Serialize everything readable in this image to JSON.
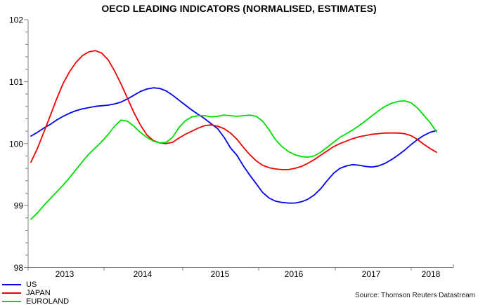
{
  "title": "OECD LEADING INDICATORS (NORMALISED, ESTIMATES)",
  "source": "Source: Thomson Reuters Datastream",
  "legend": [
    {
      "label": "US",
      "color": "#0000ee"
    },
    {
      "label": "JAPAN",
      "color": "#ee0000"
    },
    {
      "label": "EUROLAND",
      "color": "#00dd00"
    }
  ],
  "chart_data": {
    "type": "line",
    "title": "OECD LEADING INDICATORS (NORMALISED, ESTIMATES)",
    "xlabel": "",
    "ylabel": "",
    "ylim": [
      98,
      102
    ],
    "y_ticks": [
      98,
      99,
      100,
      101,
      102
    ],
    "y_minor_step": 0.2,
    "x_tick_years": [
      "2013",
      "2014",
      "2015",
      "2016",
      "2017",
      "2018"
    ],
    "x_start": "2013-01",
    "x_end": "2018-04",
    "frequency": "monthly",
    "grid": false,
    "legend_position": "bottom-left",
    "series": [
      {
        "name": "US",
        "color": "#0000ee",
        "values": [
          100.12,
          100.18,
          100.25,
          100.31,
          100.38,
          100.44,
          100.49,
          100.53,
          100.56,
          100.58,
          100.6,
          100.61,
          100.62,
          100.64,
          100.67,
          100.72,
          100.78,
          100.84,
          100.88,
          100.9,
          100.89,
          100.85,
          100.78,
          100.7,
          100.62,
          100.54,
          100.47,
          100.4,
          100.32,
          100.24,
          100.1,
          99.93,
          99.81,
          99.64,
          99.49,
          99.35,
          99.21,
          99.12,
          99.07,
          99.05,
          99.04,
          99.04,
          99.06,
          99.1,
          99.17,
          99.27,
          99.4,
          99.52,
          99.6,
          99.64,
          99.66,
          99.65,
          99.63,
          99.62,
          99.64,
          99.68,
          99.74,
          99.81,
          99.89,
          99.98,
          100.06,
          100.13,
          100.18,
          100.21
        ]
      },
      {
        "name": "JAPAN",
        "color": "#ee0000",
        "values": [
          99.7,
          99.92,
          100.18,
          100.45,
          100.72,
          100.97,
          101.16,
          101.31,
          101.42,
          101.48,
          101.5,
          101.46,
          101.35,
          101.17,
          100.96,
          100.73,
          100.5,
          100.3,
          100.14,
          100.05,
          100.01,
          100.0,
          100.02,
          100.09,
          100.15,
          100.2,
          100.25,
          100.29,
          100.3,
          100.28,
          100.24,
          100.17,
          100.07,
          99.94,
          99.82,
          99.72,
          99.65,
          99.61,
          99.59,
          99.58,
          99.58,
          99.6,
          99.63,
          99.68,
          99.74,
          99.81,
          99.88,
          99.95,
          100.0,
          100.04,
          100.08,
          100.11,
          100.13,
          100.15,
          100.16,
          100.17,
          100.17,
          100.17,
          100.16,
          100.13,
          100.07,
          99.99,
          99.92,
          99.86
        ]
      },
      {
        "name": "EUROLAND",
        "color": "#00dd00",
        "values": [
          98.78,
          98.88,
          99.0,
          99.11,
          99.22,
          99.33,
          99.45,
          99.58,
          99.71,
          99.83,
          99.93,
          100.03,
          100.15,
          100.28,
          100.38,
          100.36,
          100.28,
          100.18,
          100.1,
          100.04,
          100.01,
          100.02,
          100.1,
          100.26,
          100.37,
          100.43,
          100.45,
          100.45,
          100.43,
          100.44,
          100.46,
          100.45,
          100.44,
          100.45,
          100.46,
          100.44,
          100.36,
          100.22,
          100.06,
          99.95,
          99.87,
          99.82,
          99.79,
          99.78,
          99.8,
          99.86,
          99.94,
          100.02,
          100.1,
          100.16,
          100.22,
          100.29,
          100.37,
          100.45,
          100.53,
          100.6,
          100.65,
          100.68,
          100.69,
          100.66,
          100.58,
          100.46,
          100.34,
          100.19
        ]
      }
    ]
  }
}
